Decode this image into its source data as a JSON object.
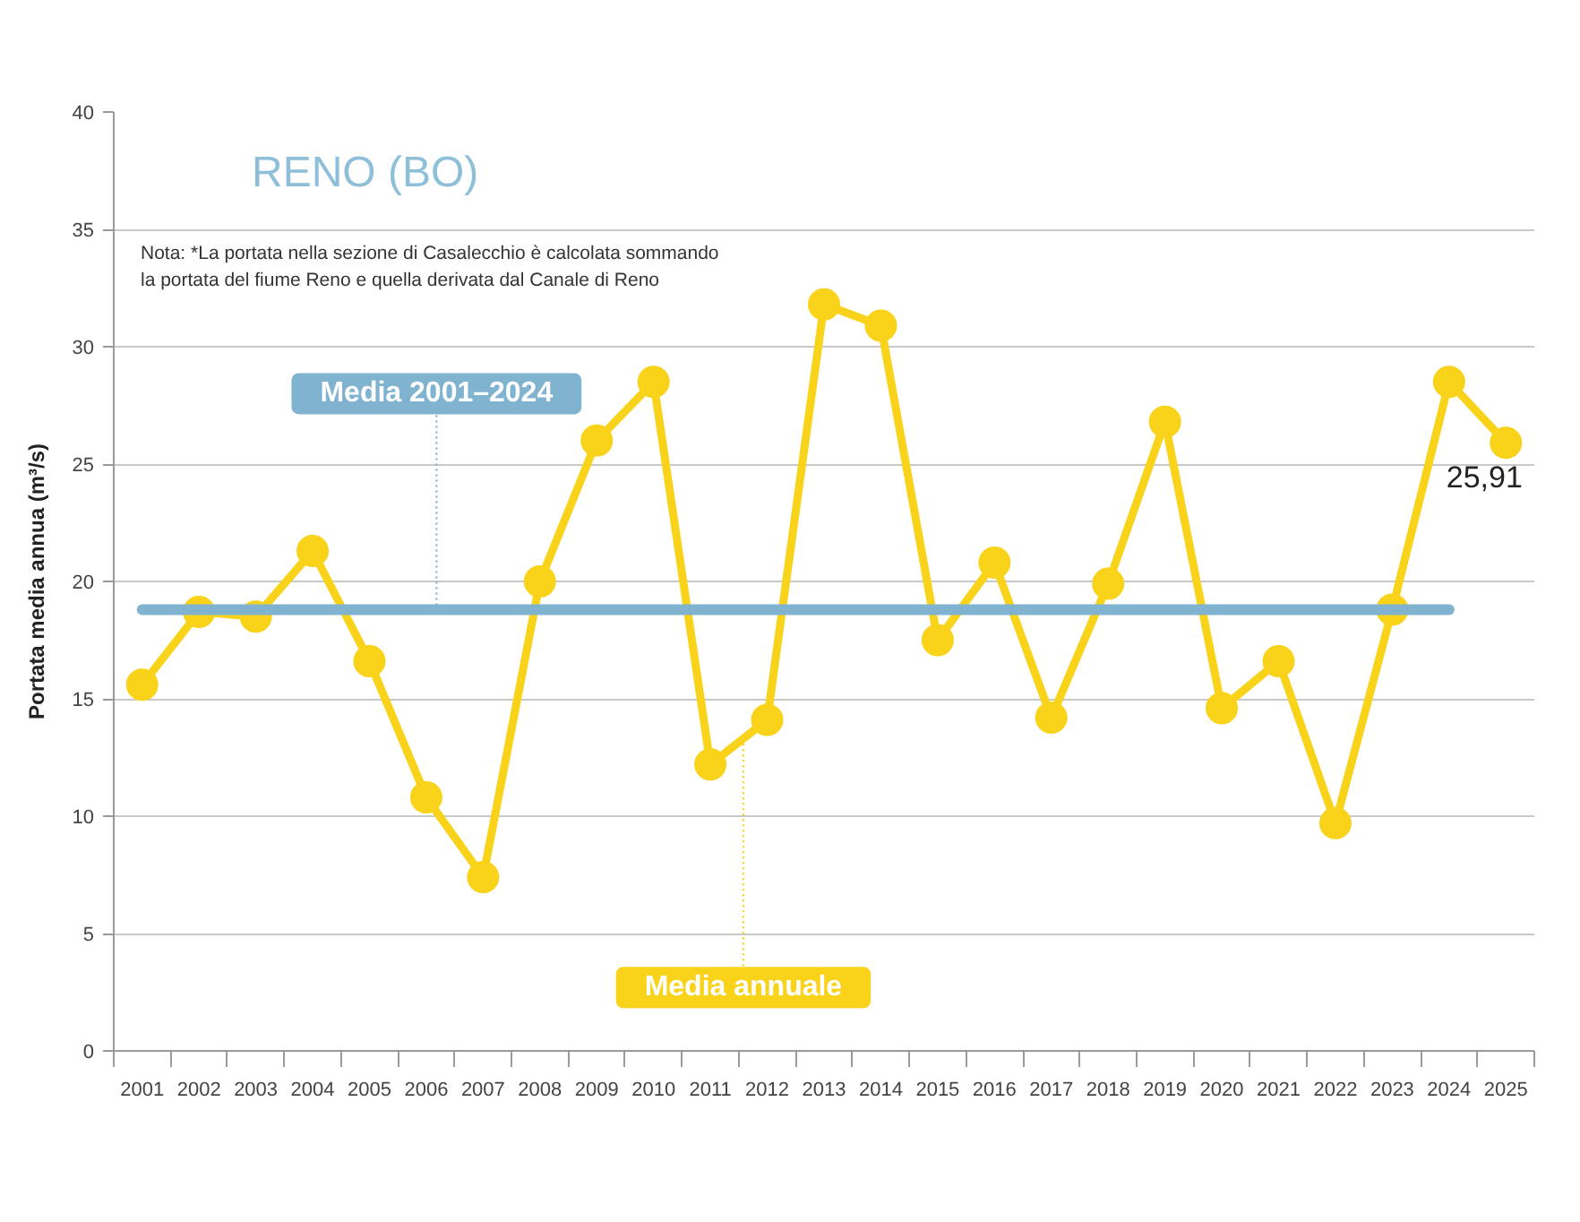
{
  "chart_data": {
    "type": "line",
    "title": "RENO (BO)",
    "ylabel": "Portata media annua (m³/s)",
    "annotations": [
      "Nota: *La portata nella sezione di Casalecchio è calcolata sommando",
      "la portata del fiume Reno e quella derivata dal Canale di Reno"
    ],
    "categories": [
      "2001",
      "2002",
      "2003",
      "2004",
      "2005",
      "2006",
      "2007",
      "2008",
      "2009",
      "2010",
      "2011",
      "2012",
      "2013",
      "2014",
      "2015",
      "2016",
      "2017",
      "2018",
      "2019",
      "2020",
      "2021",
      "2022",
      "2023",
      "2024",
      "2025"
    ],
    "series": [
      {
        "name": "Media annuale",
        "color": "#f9d21a",
        "values": [
          15.6,
          18.7,
          18.5,
          21.3,
          16.6,
          10.8,
          7.4,
          20.0,
          26.0,
          28.5,
          12.2,
          14.1,
          31.8,
          30.9,
          17.5,
          20.8,
          14.2,
          19.9,
          26.8,
          14.6,
          16.6,
          9.7,
          18.8,
          28.5,
          25.91
        ],
        "value_labels": [
          null,
          null,
          null,
          null,
          null,
          null,
          null,
          null,
          null,
          null,
          null,
          null,
          null,
          null,
          null,
          null,
          null,
          null,
          null,
          null,
          null,
          null,
          null,
          null,
          "25,91"
        ]
      },
      {
        "name": "Media 2001–2024",
        "color": "#7fb3cf",
        "values": [
          18.8,
          18.8,
          18.8,
          18.8,
          18.8,
          18.8,
          18.8,
          18.8,
          18.8,
          18.8,
          18.8,
          18.8,
          18.8,
          18.8,
          18.8,
          18.8,
          18.8,
          18.8,
          18.8,
          18.8,
          18.8,
          18.8,
          18.8,
          18.8,
          null
        ],
        "marker": "none"
      }
    ],
    "ylim": [
      0,
      40
    ],
    "yticks": [
      0,
      5,
      10,
      15,
      20,
      25,
      30,
      35,
      40
    ],
    "grid": "y",
    "marker": "circle"
  }
}
